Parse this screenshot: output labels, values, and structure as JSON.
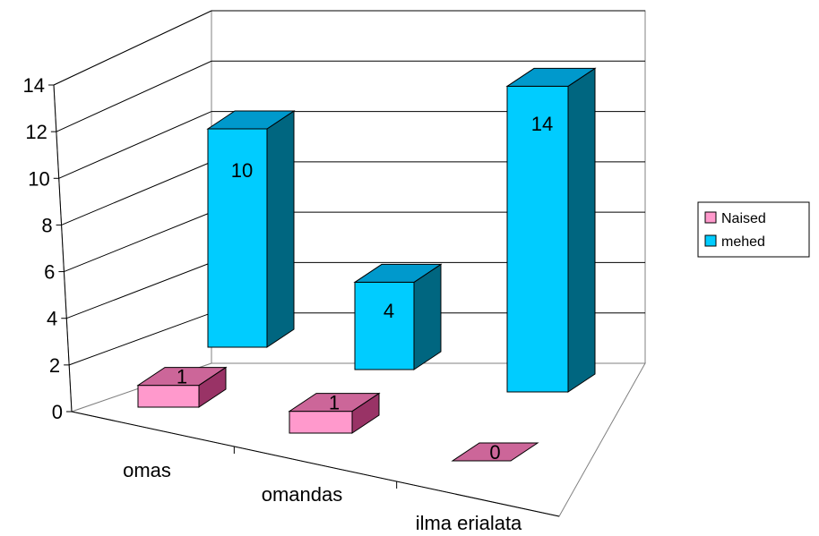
{
  "chart_data": {
    "type": "bar",
    "categories": [
      "omas",
      "omandas",
      "ilma erialata"
    ],
    "series": [
      {
        "name": "Naised",
        "values": [
          1,
          1,
          0
        ],
        "color": "#ff99cc",
        "color_top": "#cc6699",
        "color_side": "#993366"
      },
      {
        "name": "mehed",
        "values": [
          10,
          4,
          14
        ],
        "color": "#00ccff",
        "color_top": "#0099cc",
        "color_side": "#006680"
      }
    ],
    "ylim": [
      0,
      14
    ],
    "yticks": [
      0,
      2,
      4,
      6,
      8,
      10,
      12,
      14
    ],
    "grid": true,
    "legend_position": "right",
    "style": "3d-column",
    "title": "",
    "xlabel": "",
    "ylabel": ""
  }
}
